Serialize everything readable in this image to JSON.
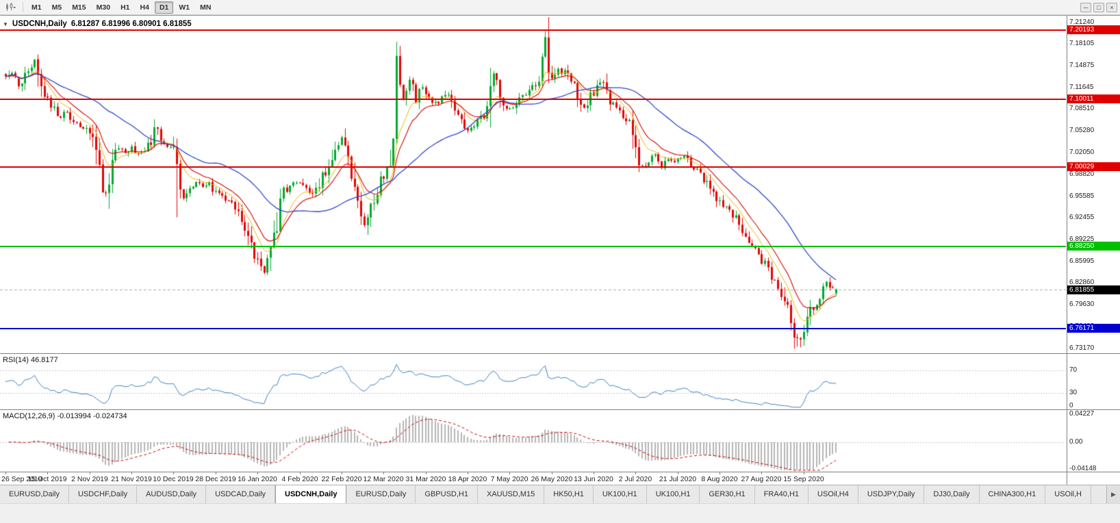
{
  "toolbar": {
    "timeframes": [
      "M1",
      "M5",
      "M15",
      "M30",
      "H1",
      "H4",
      "D1",
      "W1",
      "MN"
    ],
    "active_timeframe": "D1"
  },
  "window": {
    "collapse_arrow": "▼",
    "symbol_title": "USDCNH,Daily",
    "ohlc_text": "6.81287 6.81996 6.80901 6.81855",
    "controls": {
      "minimize": "─",
      "restore": "□",
      "close": "×"
    }
  },
  "chart_data": {
    "type": "candlestick",
    "title": "USDCNH,Daily",
    "symbol": "USDCNH",
    "timeframe": "Daily",
    "candle_count": 258,
    "last_candle": {
      "open": 6.81287,
      "high": 6.81996,
      "low": 6.80901,
      "close": 6.81855
    },
    "current_price_label": "6.81855",
    "y_axis_ticks": [
      "7.21240",
      "7.18105",
      "7.14875",
      "7.11645",
      "7.08510",
      "7.05280",
      "7.02050",
      "6.98820",
      "6.95585",
      "6.92455",
      "6.89225",
      "6.85995",
      "6.82860",
      "6.79630",
      "6.76400",
      "6.73170"
    ],
    "x_axis_labels": [
      "26 Sep 2019",
      "15 Oct 2019",
      "2 Nov 2019",
      "21 Nov 2019",
      "10 Dec 2019",
      "28 Dec 2019",
      "16 Jan 2020",
      "4 Feb 2020",
      "22 Feb 2020",
      "12 Mar 2020",
      "31 Mar 2020",
      "18 Apr 2020",
      "7 May 2020",
      "26 May 2020",
      "13 Jun 2020",
      "2 Jul 2020",
      "21 Jul 2020",
      "8 Aug 2020",
      "27 Aug 2020",
      "15 Sep 2020"
    ],
    "horizontal_lines": [
      {
        "price": 7.20193,
        "label": "7.20193",
        "color": "#e00000",
        "type": "resistance"
      },
      {
        "price": 7.10011,
        "label": "7.10011",
        "color": "#e00000",
        "type": "resistance"
      },
      {
        "price": 7.00029,
        "label": "7.00029",
        "color": "#e00000",
        "type": "resistance"
      },
      {
        "price": 6.8825,
        "label": "6.88250",
        "color": "#00c000",
        "type": "support"
      },
      {
        "price": 6.76171,
        "label": "6.76171",
        "color": "#0000d0",
        "type": "support"
      }
    ],
    "price_path": [
      [
        0,
        7.132
      ],
      [
        2,
        7.14
      ],
      [
        4,
        7.118
      ],
      [
        6,
        7.135
      ],
      [
        8,
        7.148
      ],
      [
        9,
        7.152
      ],
      [
        11,
        7.12
      ],
      [
        13,
        7.098
      ],
      [
        15,
        7.085
      ],
      [
        17,
        7.072
      ],
      [
        19,
        7.082
      ],
      [
        21,
        7.068
      ],
      [
        23,
        7.058
      ],
      [
        25,
        7.052
      ],
      [
        27,
        7.036
      ],
      [
        29,
        6.996
      ],
      [
        30,
        6.972
      ],
      [
        31,
        6.966
      ],
      [
        33,
        7.008
      ],
      [
        35,
        7.03
      ],
      [
        37,
        7.022
      ],
      [
        39,
        7.028
      ],
      [
        41,
        7.02
      ],
      [
        43,
        7.026
      ],
      [
        45,
        7.038
      ],
      [
        47,
        7.06
      ],
      [
        48,
        7.035
      ],
      [
        50,
        7.03
      ],
      [
        52,
        7.028
      ],
      [
        53,
        6.988
      ],
      [
        54,
        6.96
      ],
      [
        55,
        6.952
      ],
      [
        57,
        6.97
      ],
      [
        59,
        6.976
      ],
      [
        61,
        6.968
      ],
      [
        63,
        6.974
      ],
      [
        65,
        6.96
      ],
      [
        67,
        6.958
      ],
      [
        69,
        6.948
      ],
      [
        71,
        6.936
      ],
      [
        73,
        6.916
      ],
      [
        75,
        6.896
      ],
      [
        77,
        6.872
      ],
      [
        79,
        6.852
      ],
      [
        80,
        6.846
      ],
      [
        81,
        6.856
      ],
      [
        82,
        6.872
      ],
      [
        83,
        6.89
      ],
      [
        84,
        6.922
      ],
      [
        85,
        6.948
      ],
      [
        86,
        6.962
      ],
      [
        88,
        6.97
      ],
      [
        90,
        6.976
      ],
      [
        92,
        6.972
      ],
      [
        94,
        6.958
      ],
      [
        96,
        6.964
      ],
      [
        98,
        6.985
      ],
      [
        100,
        6.999
      ],
      [
        102,
        7.03
      ],
      [
        104,
        7.042
      ],
      [
        105,
        7.036
      ],
      [
        106,
        7.02
      ],
      [
        107,
        6.995
      ],
      [
        108,
        6.968
      ],
      [
        109,
        6.94
      ],
      [
        110,
        6.922
      ],
      [
        111,
        6.916
      ],
      [
        112,
        6.928
      ],
      [
        114,
        6.952
      ],
      [
        116,
        6.98
      ],
      [
        118,
        6.999
      ],
      [
        119,
        7.01
      ],
      [
        120,
        7.058
      ],
      [
        121,
        7.148
      ],
      [
        122,
        7.118
      ],
      [
        123,
        7.1
      ],
      [
        124,
        7.116
      ],
      [
        125,
        7.13
      ],
      [
        126,
        7.108
      ],
      [
        127,
        7.094
      ],
      [
        128,
        7.106
      ],
      [
        129,
        7.116
      ],
      [
        130,
        7.11
      ],
      [
        132,
        7.096
      ],
      [
        134,
        7.094
      ],
      [
        136,
        7.106
      ],
      [
        137,
        7.11
      ],
      [
        139,
        7.084
      ],
      [
        141,
        7.07
      ],
      [
        143,
        7.052
      ],
      [
        145,
        7.062
      ],
      [
        147,
        7.07
      ],
      [
        149,
        7.082
      ],
      [
        150,
        7.115
      ],
      [
        151,
        7.138
      ],
      [
        152,
        7.13
      ],
      [
        153,
        7.102
      ],
      [
        154,
        7.09
      ],
      [
        155,
        7.086
      ],
      [
        157,
        7.084
      ],
      [
        159,
        7.1
      ],
      [
        161,
        7.108
      ],
      [
        163,
        7.118
      ],
      [
        165,
        7.13
      ],
      [
        166,
        7.14
      ],
      [
        167,
        7.192
      ],
      [
        168,
        7.155
      ],
      [
        169,
        7.128
      ],
      [
        170,
        7.138
      ],
      [
        171,
        7.146
      ],
      [
        172,
        7.136
      ],
      [
        173,
        7.142
      ],
      [
        174,
        7.132
      ],
      [
        175,
        7.128
      ],
      [
        176,
        7.116
      ],
      [
        177,
        7.106
      ],
      [
        178,
        7.094
      ],
      [
        179,
        7.086
      ],
      [
        180,
        7.096
      ],
      [
        182,
        7.11
      ],
      [
        184,
        7.12
      ],
      [
        185,
        7.124
      ],
      [
        186,
        7.11
      ],
      [
        187,
        7.096
      ],
      [
        189,
        7.086
      ],
      [
        191,
        7.072
      ],
      [
        193,
        7.06
      ],
      [
        194,
        7.04
      ],
      [
        195,
        7.02
      ],
      [
        196,
        7.008
      ],
      [
        197,
        7.0
      ],
      [
        199,
        7.009
      ],
      [
        201,
        7.016
      ],
      [
        202,
        7.004
      ],
      [
        203,
        6.999
      ],
      [
        205,
        7.008
      ],
      [
        207,
        7.006
      ],
      [
        209,
        7.013
      ],
      [
        210,
        7.016
      ],
      [
        212,
        7.004
      ],
      [
        214,
        6.994
      ],
      [
        216,
        6.982
      ],
      [
        218,
        6.968
      ],
      [
        220,
        6.954
      ],
      [
        222,
        6.944
      ],
      [
        224,
        6.936
      ],
      [
        226,
        6.922
      ],
      [
        228,
        6.903
      ],
      [
        230,
        6.89
      ],
      [
        231,
        6.88
      ],
      [
        233,
        6.87
      ],
      [
        235,
        6.855
      ],
      [
        237,
        6.836
      ],
      [
        239,
        6.82
      ],
      [
        241,
        6.806
      ],
      [
        242,
        6.786
      ],
      [
        243,
        6.77
      ],
      [
        244,
        6.754
      ],
      [
        245,
        6.744
      ],
      [
        246,
        6.742
      ],
      [
        247,
        6.758
      ],
      [
        248,
        6.774
      ],
      [
        249,
        6.786
      ],
      [
        250,
        6.794
      ],
      [
        251,
        6.8
      ],
      [
        252,
        6.81
      ],
      [
        253,
        6.822
      ],
      [
        254,
        6.83
      ],
      [
        255,
        6.824
      ],
      [
        256,
        6.818
      ],
      [
        257,
        6.8186
      ]
    ],
    "special_highs": [
      [
        121,
        7.1642
      ],
      [
        150,
        7.1455
      ],
      [
        167,
        7.1992
      ]
    ],
    "special_lows": [
      [
        53,
        6.925
      ],
      [
        80,
        6.8428
      ],
      [
        245,
        6.734
      ],
      [
        246,
        6.7329
      ]
    ],
    "moving_averages": [
      {
        "name": "MA fast",
        "color": "#e6b800"
      },
      {
        "name": "MA mid",
        "color": "#d40000"
      },
      {
        "name": "MA slow",
        "color": "#2c46c8"
      }
    ],
    "colors": {
      "up": "#00a92e",
      "down": "#e30505",
      "rsi_line": "#3e7fc1",
      "macd_hist": "#b4b4b4",
      "macd_signal": "#cc0000",
      "last_price_dash": "#aaaaaa"
    }
  },
  "indicators": {
    "rsi": {
      "name": "RSI(14)",
      "value": "46.8177",
      "axis_labels": [
        {
          "v": 70,
          "label": "70"
        },
        {
          "v": 30,
          "label": "30"
        },
        {
          "v": 0,
          "label": "0"
        }
      ]
    },
    "macd": {
      "name": "MACD(12,26,9)",
      "values": "-0.013994 -0.024734",
      "axis_labels": [
        {
          "v": 0.04227,
          "label": "0.04227"
        },
        {
          "v": 0,
          "label": "0.00"
        },
        {
          "v": -0.04148,
          "label": "-0.04148"
        }
      ]
    }
  },
  "tabs": {
    "scroll_arrow": "▶",
    "items": [
      {
        "label": "EURUSD,Daily",
        "active": false
      },
      {
        "label": "USDCHF,Daily",
        "active": false
      },
      {
        "label": "AUDUSD,Daily",
        "active": false
      },
      {
        "label": "USDCAD,Daily",
        "active": false
      },
      {
        "label": "USDCNH,Daily",
        "active": true
      },
      {
        "label": "EURUSD,Daily",
        "active": false
      },
      {
        "label": "GBPUSD,H1",
        "active": false
      },
      {
        "label": "XAUUSD,M15",
        "active": false
      },
      {
        "label": "HK50,H1",
        "active": false
      },
      {
        "label": "UK100,H1",
        "active": false
      },
      {
        "label": "UK100,H1",
        "active": false
      },
      {
        "label": "GER30,H1",
        "active": false
      },
      {
        "label": "FRA40,H1",
        "active": false
      },
      {
        "label": "USOil,H4",
        "active": false
      },
      {
        "label": "USDJPY,Daily",
        "active": false
      },
      {
        "label": "DJ30,Daily",
        "active": false
      },
      {
        "label": "CHINA300,H1",
        "active": false
      },
      {
        "label": "USOil,H",
        "active": false
      }
    ]
  }
}
